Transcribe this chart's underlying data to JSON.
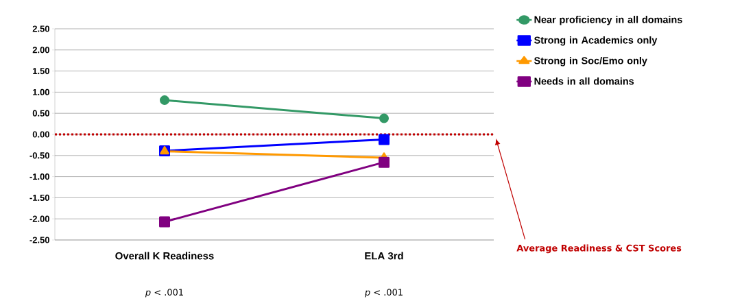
{
  "chart_data": {
    "type": "line",
    "categories": [
      "Overall K Readiness",
      "ELA 3rd"
    ],
    "series": [
      {
        "name": "Near proficiency in all domains",
        "color": "#339966",
        "marker": "circle",
        "values": [
          0.81,
          0.38
        ]
      },
      {
        "name": "Strong in Academics only",
        "color": "#0000ff",
        "marker": "square",
        "values": [
          -0.39,
          -0.12
        ]
      },
      {
        "name": "Strong in Soc/Emo only",
        "color": "#ff9900",
        "marker": "triangle",
        "values": [
          -0.4,
          -0.55
        ]
      },
      {
        "name": "Needs in all domains",
        "color": "#800080",
        "marker": "square",
        "values": [
          -2.07,
          -0.66
        ]
      }
    ],
    "ylim": [
      -2.5,
      2.5
    ],
    "yticks": [
      {
        "value": -2.5,
        "label": "-2.50"
      },
      {
        "value": -2,
        "label": "-2.00"
      },
      {
        "value": -1.5,
        "label": "-1.50"
      },
      {
        "value": -1,
        "label": "-1.00"
      },
      {
        "value": -0.5,
        "label": "-0.50"
      },
      {
        "value": 0,
        "label": "0.00"
      },
      {
        "value": 0.5,
        "label": "0.50"
      },
      {
        "value": 1,
        "label": "1.00"
      },
      {
        "value": 1.5,
        "label": "1.50"
      },
      {
        "value": 2,
        "label": "2.00"
      },
      {
        "value": 2.5,
        "label": "2.50"
      }
    ],
    "ref_lines": [
      {
        "axis": "y",
        "value": 0,
        "label": "Average Readiness & CST Scores",
        "color": "#c00000",
        "line_style": "dotted"
      }
    ],
    "annotations": [
      "*p* < .001",
      "*p* < .001"
    ],
    "grid": "y",
    "legend": "right",
    "line_style": "solid"
  }
}
